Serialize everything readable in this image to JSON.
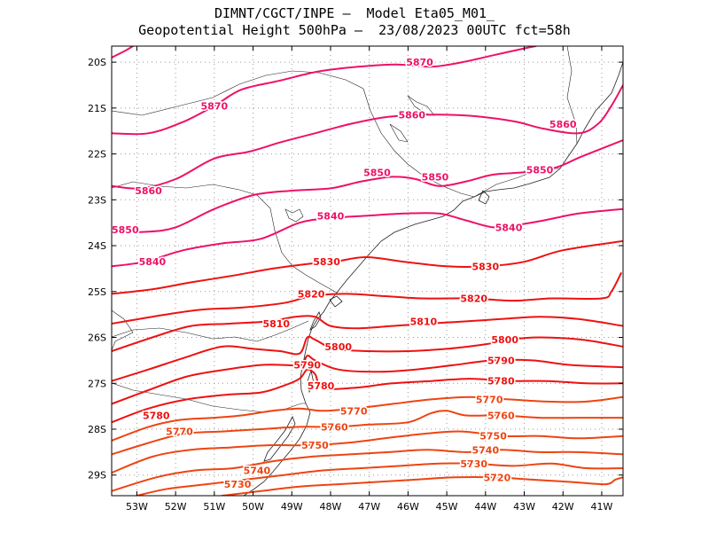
{
  "title": {
    "line1": "DIMNT/CGCT/INPE –  Model Eta05_M01_",
    "line2": "Geopotential Height 500hPa –  23/08/2023 00UTC fct=58h"
  },
  "axes": {
    "lon_range": [
      -53.65,
      -40.45
    ],
    "lat_range": [
      -29.45,
      -19.65
    ],
    "x_ticks": [
      "53W",
      "52W",
      "51W",
      "50W",
      "49W",
      "48W",
      "47W",
      "46W",
      "45W",
      "44W",
      "43W",
      "42W",
      "41W"
    ],
    "y_ticks": [
      "20S",
      "21S",
      "22S",
      "23S",
      "24S",
      "25S",
      "26S",
      "27S",
      "28S",
      "29S"
    ]
  },
  "colors": {
    "frame": "#000000",
    "grid": "#999999",
    "coast": "#222222",
    "contour_high": "#ee1166",
    "contour_mid": "#ee1111",
    "contour_low": "#ee4411"
  },
  "contour_labels": [
    {
      "text": "5870",
      "lon": -45.7,
      "lat": -20.0
    },
    {
      "text": "5870",
      "lon": -51.0,
      "lat": -20.95
    },
    {
      "text": "5860",
      "lon": -45.9,
      "lat": -21.15
    },
    {
      "text": "5860",
      "lon": -42.0,
      "lat": -21.35
    },
    {
      "text": "5860",
      "lon": -52.7,
      "lat": -22.8
    },
    {
      "text": "5850",
      "lon": -46.8,
      "lat": -22.4
    },
    {
      "text": "5850",
      "lon": -45.3,
      "lat": -22.5
    },
    {
      "text": "5850",
      "lon": -42.6,
      "lat": -22.35
    },
    {
      "text": "5850",
      "lon": -53.3,
      "lat": -23.65
    },
    {
      "text": "5840",
      "lon": -48.0,
      "lat": -23.35
    },
    {
      "text": "5840",
      "lon": -43.4,
      "lat": -23.6
    },
    {
      "text": "5840",
      "lon": -52.6,
      "lat": -24.35
    },
    {
      "text": "5830",
      "lon": -48.1,
      "lat": -24.35
    },
    {
      "text": "5830",
      "lon": -44.0,
      "lat": -24.45
    },
    {
      "text": "5820",
      "lon": -48.5,
      "lat": -25.05
    },
    {
      "text": "5820",
      "lon": -44.3,
      "lat": -25.15
    },
    {
      "text": "5810",
      "lon": -49.4,
      "lat": -25.7
    },
    {
      "text": "5810",
      "lon": -45.6,
      "lat": -25.65
    },
    {
      "text": "5800",
      "lon": -47.8,
      "lat": -26.2
    },
    {
      "text": "5800",
      "lon": -43.5,
      "lat": -26.05
    },
    {
      "text": "5790",
      "lon": -48.6,
      "lat": -26.6
    },
    {
      "text": "5790",
      "lon": -43.6,
      "lat": -26.5
    },
    {
      "text": "5780",
      "lon": -48.25,
      "lat": -27.05
    },
    {
      "text": "5780",
      "lon": -43.6,
      "lat": -26.95
    },
    {
      "text": "5780",
      "lon": -52.5,
      "lat": -27.7
    },
    {
      "text": "5770",
      "lon": -47.4,
      "lat": -27.6
    },
    {
      "text": "5770",
      "lon": -43.9,
      "lat": -27.35
    },
    {
      "text": "5770",
      "lon": -51.9,
      "lat": -28.05
    },
    {
      "text": "5760",
      "lon": -47.9,
      "lat": -27.95
    },
    {
      "text": "5760",
      "lon": -43.6,
      "lat": -27.7
    },
    {
      "text": "5750",
      "lon": -48.4,
      "lat": -28.35
    },
    {
      "text": "5750",
      "lon": -43.8,
      "lat": -28.15
    },
    {
      "text": "5740",
      "lon": -44.0,
      "lat": -28.45
    },
    {
      "text": "5740",
      "lon": -49.9,
      "lat": -28.9
    },
    {
      "text": "5730",
      "lon": -44.3,
      "lat": -28.75
    },
    {
      "text": "5730",
      "lon": -50.4,
      "lat": -29.2
    },
    {
      "text": "5720",
      "lon": -43.7,
      "lat": -29.05
    }
  ],
  "contours": [
    {
      "level": 5870,
      "points": [
        [
          -53.65,
          -19.9
        ],
        [
          -53.3,
          -19.75
        ],
        [
          -53.1,
          -19.65
        ]
      ]
    },
    {
      "level": 5870,
      "points": [
        [
          -53.65,
          -21.55
        ],
        [
          -52.7,
          -21.55
        ],
        [
          -51.8,
          -21.3
        ],
        [
          -51.0,
          -20.95
        ],
        [
          -50.3,
          -20.6
        ],
        [
          -49.3,
          -20.4
        ],
        [
          -48.3,
          -20.2
        ],
        [
          -47.3,
          -20.1
        ],
        [
          -46.3,
          -20.05
        ],
        [
          -45.4,
          -20.1
        ],
        [
          -44.6,
          -20.0
        ],
        [
          -43.8,
          -19.85
        ],
        [
          -43.0,
          -19.7
        ],
        [
          -42.7,
          -19.65
        ]
      ]
    },
    {
      "level": 5860,
      "points": [
        [
          -53.65,
          -22.7
        ],
        [
          -52.9,
          -22.75
        ],
        [
          -52.0,
          -22.55
        ],
        [
          -51.0,
          -22.1
        ],
        [
          -50.1,
          -21.95
        ],
        [
          -49.3,
          -21.75
        ],
        [
          -48.4,
          -21.55
        ],
        [
          -47.5,
          -21.35
        ],
        [
          -46.6,
          -21.2
        ],
        [
          -45.7,
          -21.15
        ],
        [
          -44.8,
          -21.15
        ],
        [
          -44.0,
          -21.2
        ],
        [
          -43.2,
          -21.3
        ],
        [
          -42.5,
          -21.45
        ],
        [
          -41.6,
          -21.55
        ],
        [
          -41.1,
          -21.35
        ],
        [
          -40.75,
          -20.95
        ],
        [
          -40.45,
          -20.5
        ]
      ]
    },
    {
      "level": 5850,
      "points": [
        [
          -53.65,
          -23.7
        ],
        [
          -52.8,
          -23.7
        ],
        [
          -52.0,
          -23.6
        ],
        [
          -51.0,
          -23.2
        ],
        [
          -50.0,
          -22.9
        ],
        [
          -49.0,
          -22.8
        ],
        [
          -48.0,
          -22.75
        ],
        [
          -47.2,
          -22.6
        ],
        [
          -46.4,
          -22.5
        ],
        [
          -45.8,
          -22.55
        ],
        [
          -45.2,
          -22.7
        ],
        [
          -44.5,
          -22.6
        ],
        [
          -43.8,
          -22.45
        ],
        [
          -43.0,
          -22.4
        ],
        [
          -42.2,
          -22.3
        ],
        [
          -41.5,
          -22.05
        ],
        [
          -40.45,
          -21.7
        ]
      ]
    },
    {
      "level": 5840,
      "points": [
        [
          -53.65,
          -24.45
        ],
        [
          -52.8,
          -24.35
        ],
        [
          -51.8,
          -24.1
        ],
        [
          -50.8,
          -23.95
        ],
        [
          -49.8,
          -23.85
        ],
        [
          -48.8,
          -23.5
        ],
        [
          -48.0,
          -23.4
        ],
        [
          -47.1,
          -23.35
        ],
        [
          -46.1,
          -23.3
        ],
        [
          -45.2,
          -23.3
        ],
        [
          -44.5,
          -23.45
        ],
        [
          -43.8,
          -23.6
        ],
        [
          -43.2,
          -23.55
        ],
        [
          -42.5,
          -23.45
        ],
        [
          -41.6,
          -23.3
        ],
        [
          -40.45,
          -23.2
        ]
      ]
    },
    {
      "level": 5830,
      "points": [
        [
          -53.65,
          -25.05
        ],
        [
          -52.6,
          -24.95
        ],
        [
          -51.6,
          -24.8
        ],
        [
          -50.5,
          -24.65
        ],
        [
          -49.5,
          -24.5
        ],
        [
          -48.6,
          -24.4
        ],
        [
          -47.9,
          -24.35
        ],
        [
          -47.1,
          -24.25
        ],
        [
          -46.1,
          -24.35
        ],
        [
          -45.0,
          -24.45
        ],
        [
          -44.0,
          -24.45
        ],
        [
          -43.0,
          -24.35
        ],
        [
          -42.0,
          -24.1
        ],
        [
          -40.45,
          -23.9
        ]
      ]
    },
    {
      "level": 5820,
      "points": [
        [
          -53.65,
          -25.7
        ],
        [
          -52.6,
          -25.55
        ],
        [
          -51.4,
          -25.4
        ],
        [
          -50.3,
          -25.35
        ],
        [
          -49.2,
          -25.25
        ],
        [
          -48.5,
          -25.1
        ],
        [
          -47.6,
          -25.05
        ],
        [
          -46.6,
          -25.1
        ],
        [
          -45.6,
          -25.15
        ],
        [
          -44.4,
          -25.15
        ],
        [
          -43.3,
          -25.2
        ],
        [
          -42.3,
          -25.15
        ],
        [
          -41.0,
          -25.15
        ],
        [
          -40.75,
          -25.0
        ],
        [
          -40.5,
          -24.6
        ]
      ]
    },
    {
      "level": 5810,
      "points": [
        [
          -53.65,
          -26.3
        ],
        [
          -52.6,
          -26.0
        ],
        [
          -51.6,
          -25.75
        ],
        [
          -50.6,
          -25.7
        ],
        [
          -49.6,
          -25.65
        ],
        [
          -48.9,
          -25.55
        ],
        [
          -48.4,
          -25.55
        ],
        [
          -48.0,
          -25.75
        ],
        [
          -47.3,
          -25.8
        ],
        [
          -46.4,
          -25.75
        ],
        [
          -45.5,
          -25.7
        ],
        [
          -44.5,
          -25.65
        ],
        [
          -43.6,
          -25.6
        ],
        [
          -42.6,
          -25.55
        ],
        [
          -41.6,
          -25.6
        ],
        [
          -40.45,
          -25.75
        ]
      ]
    },
    {
      "level": 5800,
      "points": [
        [
          -53.65,
          -26.95
        ],
        [
          -52.7,
          -26.7
        ],
        [
          -51.8,
          -26.45
        ],
        [
          -50.8,
          -26.2
        ],
        [
          -50.0,
          -26.25
        ],
        [
          -49.3,
          -26.3
        ],
        [
          -48.8,
          -26.35
        ],
        [
          -48.6,
          -26.0
        ],
        [
          -48.4,
          -26.05
        ],
        [
          -47.9,
          -26.25
        ],
        [
          -47.0,
          -26.3
        ],
        [
          -46.0,
          -26.3
        ],
        [
          -45.0,
          -26.25
        ],
        [
          -44.0,
          -26.15
        ],
        [
          -43.4,
          -26.05
        ],
        [
          -42.6,
          -26.0
        ],
        [
          -41.5,
          -26.05
        ],
        [
          -40.45,
          -26.2
        ]
      ]
    },
    {
      "level": 5790,
      "points": [
        [
          -53.65,
          -27.45
        ],
        [
          -52.7,
          -27.15
        ],
        [
          -51.7,
          -26.85
        ],
        [
          -50.7,
          -26.7
        ],
        [
          -49.8,
          -26.6
        ],
        [
          -49.2,
          -26.6
        ],
        [
          -48.75,
          -26.6
        ],
        [
          -48.6,
          -26.4
        ],
        [
          -48.4,
          -26.5
        ],
        [
          -47.8,
          -26.7
        ],
        [
          -46.8,
          -26.75
        ],
        [
          -45.8,
          -26.7
        ],
        [
          -44.8,
          -26.6
        ],
        [
          -43.8,
          -26.5
        ],
        [
          -42.8,
          -26.5
        ],
        [
          -41.8,
          -26.6
        ],
        [
          -40.45,
          -26.65
        ]
      ]
    },
    {
      "level": 5780,
      "points": [
        [
          -53.65,
          -27.85
        ],
        [
          -52.7,
          -27.55
        ],
        [
          -51.7,
          -27.35
        ],
        [
          -50.7,
          -27.25
        ],
        [
          -49.8,
          -27.2
        ],
        [
          -49.2,
          -27.05
        ],
        [
          -48.8,
          -26.9
        ],
        [
          -48.6,
          -26.7
        ],
        [
          -48.4,
          -26.8
        ],
        [
          -48.2,
          -27.1
        ],
        [
          -47.4,
          -27.1
        ],
        [
          -46.4,
          -27.0
        ],
        [
          -45.4,
          -26.95
        ],
        [
          -44.4,
          -26.9
        ],
        [
          -43.4,
          -26.95
        ],
        [
          -42.4,
          -26.95
        ],
        [
          -41.4,
          -27.0
        ],
        [
          -40.45,
          -27.0
        ]
      ]
    },
    {
      "level": 5770,
      "points": [
        [
          -53.65,
          -28.25
        ],
        [
          -52.7,
          -27.95
        ],
        [
          -51.9,
          -27.8
        ],
        [
          -51.0,
          -27.75
        ],
        [
          -50.3,
          -27.7
        ],
        [
          -49.5,
          -27.6
        ],
        [
          -48.8,
          -27.55
        ],
        [
          -48.2,
          -27.6
        ],
        [
          -47.4,
          -27.55
        ],
        [
          -46.4,
          -27.45
        ],
        [
          -45.4,
          -27.35
        ],
        [
          -44.4,
          -27.3
        ],
        [
          -43.4,
          -27.35
        ],
        [
          -42.4,
          -27.4
        ],
        [
          -41.4,
          -27.4
        ],
        [
          -40.45,
          -27.3
        ]
      ]
    },
    {
      "level": 5760,
      "points": [
        [
          -53.65,
          -28.55
        ],
        [
          -52.7,
          -28.3
        ],
        [
          -51.8,
          -28.1
        ],
        [
          -50.8,
          -28.05
        ],
        [
          -49.8,
          -28.0
        ],
        [
          -48.8,
          -27.95
        ],
        [
          -47.9,
          -27.95
        ],
        [
          -47.0,
          -27.9
        ],
        [
          -46.0,
          -27.85
        ],
        [
          -45.4,
          -27.65
        ],
        [
          -45.0,
          -27.6
        ],
        [
          -44.5,
          -27.7
        ],
        [
          -43.6,
          -27.7
        ],
        [
          -42.6,
          -27.75
        ],
        [
          -41.6,
          -27.75
        ],
        [
          -40.45,
          -27.75
        ]
      ]
    },
    {
      "level": 5750,
      "points": [
        [
          -53.65,
          -28.95
        ],
        [
          -52.6,
          -28.6
        ],
        [
          -51.6,
          -28.45
        ],
        [
          -50.6,
          -28.4
        ],
        [
          -49.6,
          -28.35
        ],
        [
          -48.6,
          -28.35
        ],
        [
          -47.6,
          -28.3
        ],
        [
          -46.6,
          -28.2
        ],
        [
          -45.6,
          -28.1
        ],
        [
          -44.6,
          -28.05
        ],
        [
          -43.6,
          -28.15
        ],
        [
          -42.6,
          -28.15
        ],
        [
          -41.6,
          -28.2
        ],
        [
          -40.45,
          -28.15
        ]
      ]
    },
    {
      "level": 5740,
      "points": [
        [
          -53.65,
          -29.35
        ],
        [
          -52.5,
          -29.05
        ],
        [
          -51.5,
          -28.9
        ],
        [
          -50.5,
          -28.85
        ],
        [
          -49.5,
          -28.7
        ],
        [
          -48.5,
          -28.6
        ],
        [
          -47.5,
          -28.55
        ],
        [
          -46.5,
          -28.5
        ],
        [
          -45.5,
          -28.45
        ],
        [
          -44.5,
          -28.5
        ],
        [
          -43.6,
          -28.45
        ],
        [
          -42.6,
          -28.5
        ],
        [
          -41.6,
          -28.5
        ],
        [
          -40.45,
          -28.55
        ]
      ]
    },
    {
      "level": 5730,
      "points": [
        [
          -53.0,
          -29.45
        ],
        [
          -52.2,
          -29.3
        ],
        [
          -51.2,
          -29.2
        ],
        [
          -50.2,
          -29.1
        ],
        [
          -49.2,
          -29.0
        ],
        [
          -48.2,
          -28.9
        ],
        [
          -47.2,
          -28.85
        ],
        [
          -46.2,
          -28.8
        ],
        [
          -45.2,
          -28.75
        ],
        [
          -44.3,
          -28.75
        ],
        [
          -43.3,
          -28.8
        ],
        [
          -42.3,
          -28.75
        ],
        [
          -41.4,
          -28.85
        ],
        [
          -40.45,
          -28.85
        ]
      ]
    },
    {
      "level": 5720,
      "points": [
        [
          -50.8,
          -29.45
        ],
        [
          -49.8,
          -29.35
        ],
        [
          -48.8,
          -29.25
        ],
        [
          -47.8,
          -29.2
        ],
        [
          -46.8,
          -29.15
        ],
        [
          -45.8,
          -29.1
        ],
        [
          -44.8,
          -29.05
        ],
        [
          -43.8,
          -29.05
        ],
        [
          -42.8,
          -29.1
        ],
        [
          -41.8,
          -29.15
        ],
        [
          -40.9,
          -29.2
        ],
        [
          -40.65,
          -29.1
        ],
        [
          -40.45,
          -29.05
        ]
      ]
    }
  ]
}
